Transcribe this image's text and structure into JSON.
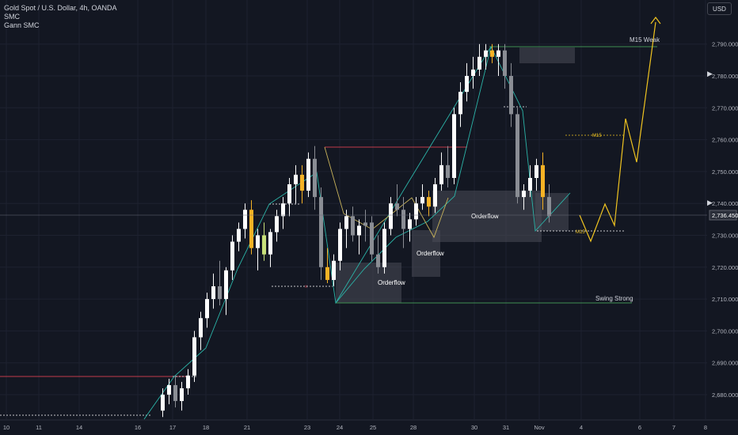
{
  "legend": {
    "symbol": "Gold Spot / U.S. Dollar, 4h, OANDA",
    "indicator1": "SMC",
    "indicator2": "Gann SMC"
  },
  "currency_button": "USD",
  "colors": {
    "background": "#131722",
    "grid": "#1e2230",
    "candle_up": "#ffffff",
    "candle_down": "#8a8d94",
    "candle_highlight": "#f5b225",
    "candle_lime": "#c8e07a",
    "zone": "#4a4d57",
    "resistance": "#c23b4a",
    "support": "#3f8f52",
    "trendline": "#2bb4a8",
    "projection": "#f0c420",
    "axis_text": "#b2b5be"
  },
  "chart_data": {
    "type": "candlestick",
    "symbol": "Gold Spot / U.S. Dollar",
    "timeframe": "4h",
    "ylim": [
      2672,
      2800
    ],
    "y_ticks": [
      "2,680.000",
      "2,690.000",
      "2,700.000",
      "2,710.000",
      "2,720.000",
      "2,730.000",
      "2,740.000",
      "2,750.000",
      "2,760.000",
      "2,770.000",
      "2,780.000",
      "2,790.000"
    ],
    "y_tick_values": [
      2680,
      2690,
      2700,
      2710,
      2720,
      2730,
      2740,
      2750,
      2760,
      2770,
      2780,
      2790
    ],
    "x_ticks": [
      "10",
      "11",
      "14",
      "16",
      "17",
      "18",
      "21",
      "23",
      "24",
      "25",
      "28",
      "30",
      "31",
      "Nov",
      "4",
      "6",
      "7",
      "8"
    ],
    "current_price": "2,736.450",
    "current_price_value": 2736.45,
    "candles_first_x": 203,
    "candles": [
      [
        2675,
        2682,
        2673,
        2680,
        "u"
      ],
      [
        2680,
        2685,
        2677,
        2683,
        "u"
      ],
      [
        2683,
        2686,
        2676,
        2678,
        "d"
      ],
      [
        2678,
        2684,
        2675,
        2682,
        "u"
      ],
      [
        2682,
        2688,
        2680,
        2686,
        "u"
      ],
      [
        2686,
        2700,
        2684,
        2698,
        "u"
      ],
      [
        2698,
        2706,
        2694,
        2704,
        "u"
      ],
      [
        2704,
        2712,
        2701,
        2710,
        "u"
      ],
      [
        2710,
        2718,
        2707,
        2714,
        "u"
      ],
      [
        2714,
        2722,
        2708,
        2710,
        "d"
      ],
      [
        2710,
        2720,
        2705,
        2719,
        "u"
      ],
      [
        2719,
        2730,
        2716,
        2728,
        "u"
      ],
      [
        2728,
        2734,
        2725,
        2732,
        "u"
      ],
      [
        2732,
        2740,
        2729,
        2738,
        "u"
      ],
      [
        2738,
        2741,
        2724,
        2726,
        "h"
      ],
      [
        2726,
        2732,
        2719,
        2730,
        "u"
      ],
      [
        2730,
        2734,
        2722,
        2724,
        "l"
      ],
      [
        2724,
        2732,
        2720,
        2731,
        "u"
      ],
      [
        2731,
        2738,
        2728,
        2736,
        "u"
      ],
      [
        2736,
        2742,
        2732,
        2740,
        "u"
      ],
      [
        2740,
        2748,
        2736,
        2746,
        "u"
      ],
      [
        2746,
        2752,
        2740,
        2749,
        "u"
      ],
      [
        2749,
        2752,
        2740,
        2744,
        "h"
      ],
      [
        2744,
        2756,
        2742,
        2754,
        "u"
      ],
      [
        2754,
        2758,
        2738,
        2742,
        "d"
      ],
      [
        2742,
        2745,
        2716,
        2720,
        "d"
      ],
      [
        2720,
        2726,
        2715,
        2716,
        "h"
      ],
      [
        2716,
        2724,
        2714,
        2722,
        "u"
      ],
      [
        2722,
        2734,
        2719,
        2732,
        "u"
      ],
      [
        2732,
        2738,
        2726,
        2736,
        "u"
      ],
      [
        2736,
        2739,
        2728,
        2730,
        "d"
      ],
      [
        2730,
        2735,
        2724,
        2733,
        "u"
      ],
      [
        2733,
        2738,
        2728,
        2734,
        "d"
      ],
      [
        2734,
        2736,
        2722,
        2724,
        "d"
      ],
      [
        2724,
        2730,
        2718,
        2720,
        "d"
      ],
      [
        2720,
        2734,
        2718,
        2732,
        "u"
      ],
      [
        2732,
        2742,
        2730,
        2740,
        "u"
      ],
      [
        2740,
        2746,
        2736,
        2738,
        "d"
      ],
      [
        2738,
        2742,
        2726,
        2732,
        "d"
      ],
      [
        2732,
        2737,
        2728,
        2735,
        "u"
      ],
      [
        2735,
        2742,
        2733,
        2740,
        "u"
      ],
      [
        2740,
        2746,
        2738,
        2742,
        "u"
      ],
      [
        2742,
        2744,
        2736,
        2739,
        "h"
      ],
      [
        2739,
        2748,
        2737,
        2746,
        "u"
      ],
      [
        2746,
        2756,
        2744,
        2752,
        "u"
      ],
      [
        2752,
        2758,
        2745,
        2748,
        "d"
      ],
      [
        2748,
        2770,
        2746,
        2768,
        "u"
      ],
      [
        2768,
        2778,
        2764,
        2775,
        "u"
      ],
      [
        2775,
        2784,
        2772,
        2780,
        "u"
      ],
      [
        2780,
        2786,
        2776,
        2782,
        "u"
      ],
      [
        2782,
        2790,
        2780,
        2786,
        "u"
      ],
      [
        2786,
        2790,
        2782,
        2788,
        "u"
      ],
      [
        2788,
        2790,
        2784,
        2786,
        "h"
      ],
      [
        2786,
        2790,
        2780,
        2788,
        "u"
      ],
      [
        2788,
        2790,
        2776,
        2780,
        "d"
      ],
      [
        2780,
        2784,
        2764,
        2768,
        "d"
      ],
      [
        2768,
        2770,
        2740,
        2742,
        "d"
      ],
      [
        2742,
        2746,
        2738,
        2744,
        "u"
      ],
      [
        2744,
        2752,
        2742,
        2748,
        "u"
      ],
      [
        2748,
        2754,
        2744,
        2752,
        "u"
      ],
      [
        2752,
        2756,
        2738,
        2742,
        "h"
      ],
      [
        2742,
        2746,
        2734,
        2736,
        "d"
      ]
    ],
    "annotations": [
      "M15 Weak",
      "Swing Strong",
      "Orderflow",
      "Orderflow",
      "Orderflow",
      "M15",
      "M15"
    ]
  },
  "labels": {
    "m15_weak": "M15 Weak",
    "swing_strong": "Swing Strong",
    "orderflow_1": "Orderflow",
    "orderflow_2": "Orderflow",
    "orderflow_3": "Orderflow",
    "m15_upper": "M15",
    "m15_lower": "M15",
    "x_marker": "x"
  }
}
